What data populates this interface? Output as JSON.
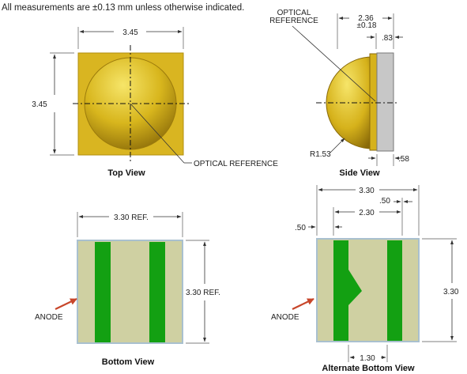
{
  "note": "All measurements are ±0.13 mm unless otherwise indicated.",
  "top_view": {
    "title": "Top View",
    "dim_width": "3.45",
    "dim_height": "3.45",
    "callout": "OPTICAL REFERENCE"
  },
  "side_view": {
    "title": "Side View",
    "callout_line1": "OPTICAL",
    "callout_line2": "REFERENCE",
    "dim_height": "2.36",
    "dim_tolerance": "±0.18",
    "dim_lens_offset": ".83",
    "dim_radius": "R1.53",
    "dim_substrate": ".58"
  },
  "bottom_view": {
    "title": "Bottom View",
    "dim_width": "3.30 REF.",
    "dim_height": "3.30 REF.",
    "anode_label": "ANODE"
  },
  "alt_bottom_view": {
    "title": "Alternate Bottom View",
    "dim_width": "3.30",
    "dim_pad_gap": "2.30",
    "dim_pad_width": ".50",
    "dim_edge_offset": ".50",
    "dim_height": "3.30",
    "dim_center": "1.30",
    "anode_label": "ANODE"
  },
  "colors": {
    "package_gold": "#d9b521",
    "dome_light": "#f1dc52",
    "dome_dark": "#8f6f0a",
    "substrate": "#cfd0a2",
    "pad_green": "#13a012",
    "outline_blue": "#a9c0cf",
    "side_gray": "#c7c7c7",
    "arrow_red": "#c8462a"
  }
}
